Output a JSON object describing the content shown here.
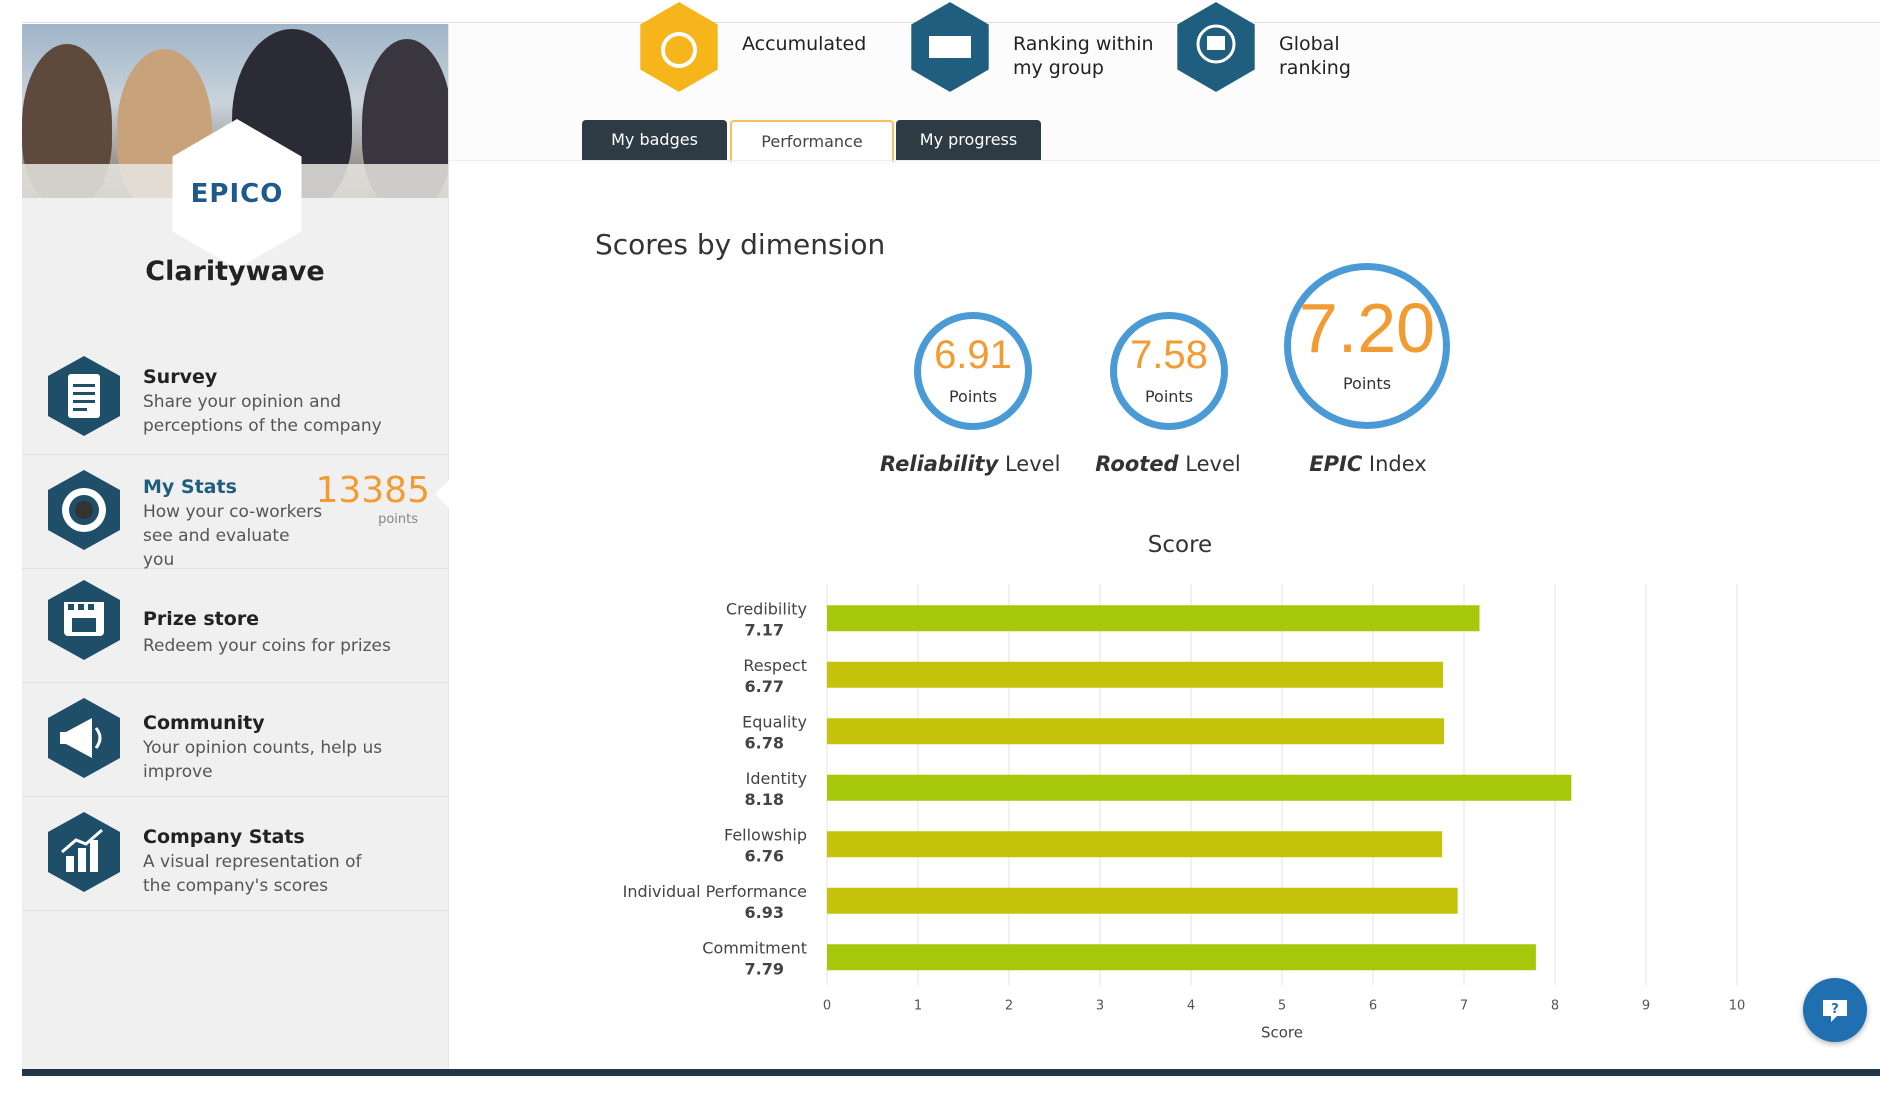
{
  "sidebar": {
    "company_name": "Claritywave",
    "logo_text": "EPICO",
    "items": [
      {
        "title": "Survey",
        "desc": "Share your opinion and perceptions of the company",
        "icon": "survey-document-icon"
      },
      {
        "title": "My Stats",
        "desc": "How your co-workers see and evaluate you",
        "icon": "medal-icon",
        "points": "13385",
        "points_label": "points",
        "active": true
      },
      {
        "title": "Prize store",
        "desc": "Redeem your coins for prizes",
        "icon": "store-icon"
      },
      {
        "title": "Community",
        "desc": "Your opinion counts, help us improve",
        "icon": "megaphone-icon"
      },
      {
        "title": "Company Stats",
        "desc": "A visual representation of the company's scores",
        "icon": "bar-chart-icon"
      }
    ]
  },
  "top_stats": [
    {
      "label": "Accumulated",
      "icon": "coins-icon",
      "color": "#f5b51b"
    },
    {
      "label": "Ranking within my group",
      "icon": "ranking-monitor-icon",
      "color": "#1f5e7e"
    },
    {
      "label": "Global ranking",
      "icon": "globe-trophy-icon",
      "color": "#1f5e7e"
    }
  ],
  "tabs": [
    {
      "label": "My badges",
      "active": false
    },
    {
      "label": "Performance",
      "active": true
    },
    {
      "label": "My progress",
      "active": false
    }
  ],
  "scores": {
    "title": "Scores by dimension",
    "items": [
      {
        "value": "6.91",
        "unit": "Points",
        "caption_bold": "Reliability",
        "caption_rest": " Level"
      },
      {
        "value": "7.58",
        "unit": "Points",
        "caption_bold": "Rooted",
        "caption_rest": " Level"
      },
      {
        "value": "7.20",
        "unit": "Points",
        "caption_bold": "EPIC",
        "caption_rest": " Index"
      }
    ]
  },
  "chart_data": {
    "type": "bar",
    "orientation": "horizontal",
    "title": "Score",
    "xlabel": "Score",
    "xlim": [
      0,
      10
    ],
    "xticks": [
      "0",
      "1",
      "2",
      "3",
      "4",
      "5",
      "6",
      "7",
      "8",
      "9",
      "10"
    ],
    "categories": [
      "Credibility",
      "Respect",
      "Equality",
      "Identity",
      "Fellowship",
      "Individual Performance",
      "Commitment"
    ],
    "values": [
      7.17,
      6.77,
      6.78,
      8.18,
      6.76,
      6.93,
      7.79
    ],
    "value_labels": [
      "7.17",
      "6.77",
      "6.78",
      "8.18",
      "6.76",
      "6.93",
      "7.79"
    ],
    "colors": [
      "#a6c70a",
      "#c4c20a",
      "#c4c20a",
      "#a6c70a",
      "#c4c20a",
      "#c4c20a",
      "#a6c70a"
    ],
    "grid": true
  },
  "help_icon": "help-chat-icon"
}
